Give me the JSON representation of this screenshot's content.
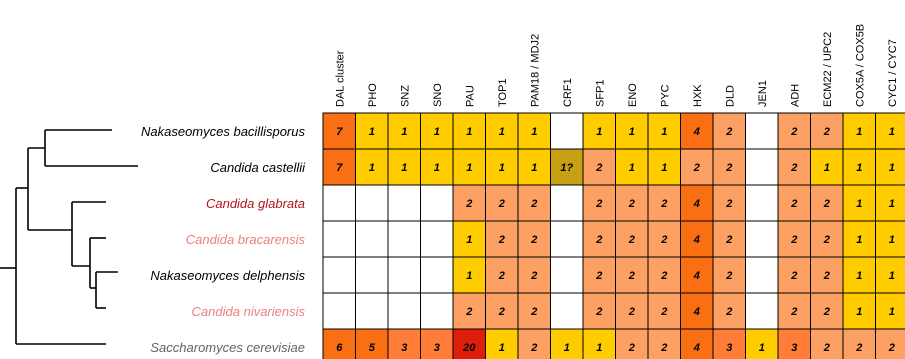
{
  "colors": {
    "empty": "#ffffff",
    "c1": "#ffcc00",
    "c2": "#fca064",
    "c3": "#ff7d36",
    "c4": "#fa6e14",
    "c5": "#fa6e14",
    "c6": "#fa6e14",
    "c7": "#fa6e14",
    "c20": "#dc1e0a",
    "uncertain": "#c8a014",
    "species_black": "#000000",
    "species_dark_red": "#b4141e",
    "species_pink": "#ee8080",
    "species_gray": "#646464"
  },
  "columns": [
    "DAL cluster",
    "PHO",
    "SNZ",
    "SNO",
    "PAU",
    "TOP1",
    "PAM18 / MDJ2",
    "CRF1",
    "SFP1",
    "ENO",
    "PYC",
    "HXK",
    "DLD",
    "JEN1",
    "ADH",
    "ECM22 / UPC2",
    "COX5A / COX5B",
    "CYC1 / CYC7"
  ],
  "species": [
    {
      "name": "Nakaseomyces bacillisporus",
      "color": "species_black",
      "cells": [
        "7",
        "1",
        "1",
        "1",
        "1",
        "1",
        "1",
        "",
        "1",
        "1",
        "1",
        "4",
        "2",
        "",
        "2",
        "2",
        "1",
        "1"
      ]
    },
    {
      "name": "Candida castellii",
      "color": "species_black",
      "cells": [
        "7",
        "1",
        "1",
        "1",
        "1",
        "1",
        "1",
        "1?",
        "2",
        "1",
        "1",
        "2",
        "2",
        "",
        "2",
        "1",
        "1",
        "1"
      ]
    },
    {
      "name": "Candida glabrata",
      "color": "species_dark_red",
      "cells": [
        "",
        "",
        "",
        "",
        "2",
        "2",
        "2",
        "",
        "2",
        "2",
        "2",
        "4",
        "2",
        "",
        "2",
        "2",
        "1",
        "1"
      ]
    },
    {
      "name": "Candida bracarensis",
      "color": "species_pink",
      "cells": [
        "",
        "",
        "",
        "",
        "1",
        "2",
        "2",
        "",
        "2",
        "2",
        "2",
        "4",
        "2",
        "",
        "2",
        "2",
        "1",
        "1"
      ]
    },
    {
      "name": "Nakaseomyces delphensis",
      "color": "species_black",
      "cells": [
        "",
        "",
        "",
        "",
        "1",
        "2",
        "2",
        "",
        "2",
        "2",
        "2",
        "4",
        "2",
        "",
        "2",
        "2",
        "1",
        "1"
      ]
    },
    {
      "name": "Candida nivariensis",
      "color": "species_pink",
      "cells": [
        "",
        "",
        "",
        "",
        "2",
        "2",
        "2",
        "",
        "2",
        "2",
        "2",
        "4",
        "2",
        "",
        "2",
        "2",
        "1",
        "1"
      ]
    },
    {
      "name": "Saccharomyces cerevisiae",
      "color": "species_gray",
      "cells": [
        "6",
        "5",
        "3",
        "3",
        "20",
        "1",
        "2",
        "1",
        "1",
        "2",
        "2",
        "4",
        "3",
        "1",
        "3",
        "2",
        "2",
        "2"
      ]
    }
  ]
}
